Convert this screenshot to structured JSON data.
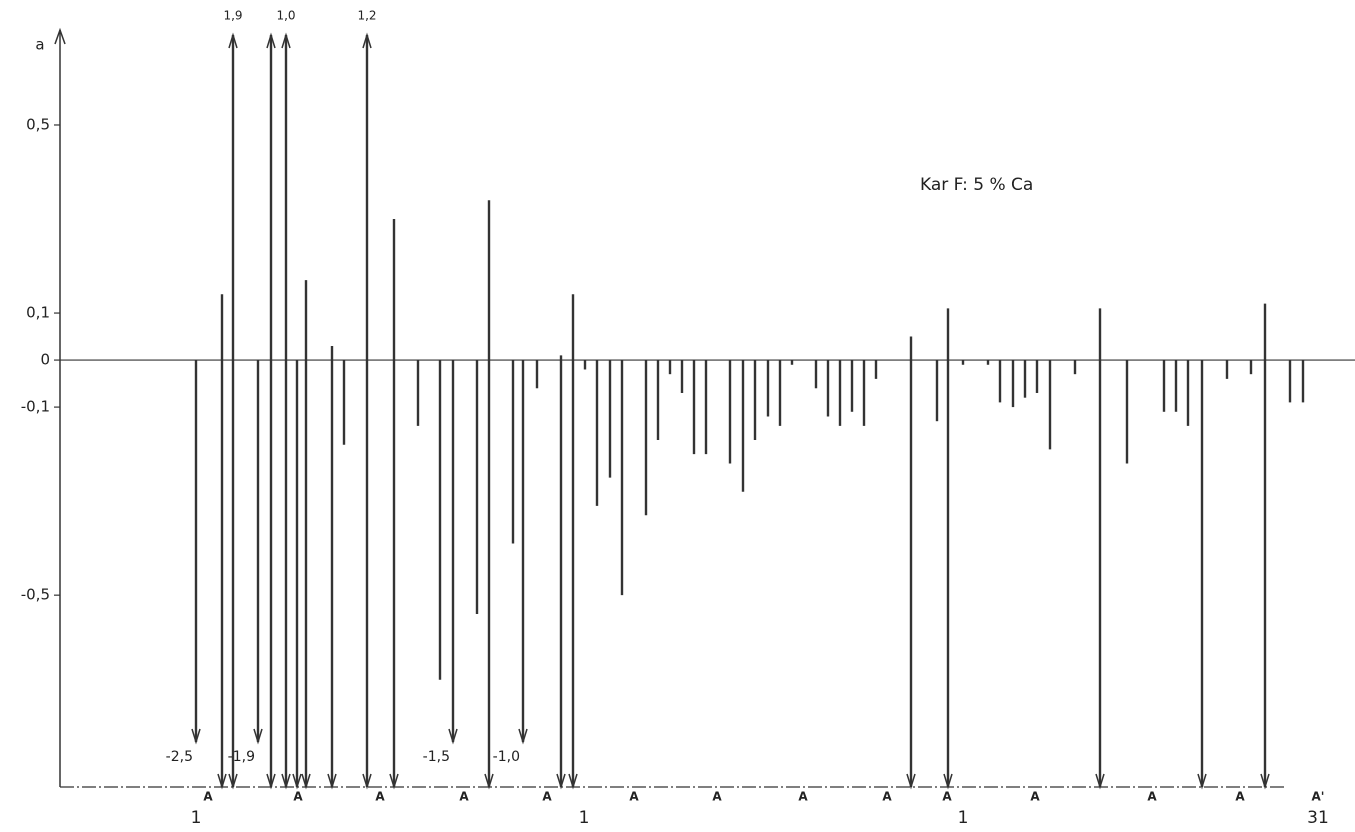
{
  "chart_data": {
    "type": "stem",
    "y_label": "a",
    "annotation": "Kar F:  5 % Ca",
    "color": "#333333",
    "ylim": [
      -0.908,
      0.702
    ],
    "xlim": [
      6,
      135.5
    ],
    "yticks": [
      {
        "value": 0.5,
        "label": "0,5"
      },
      {
        "value": 0.1,
        "label": "0,1"
      },
      0,
      {
        "value": -0.1,
        "label": "-0,1"
      },
      {
        "value": -0.5,
        "label": "-0,5"
      }
    ],
    "x": [
      19.6,
      22.2,
      23.3,
      25.8,
      27.1,
      28.6,
      29.7,
      30.6,
      33.2,
      34.4,
      36.7,
      39.4,
      41.8,
      44.0,
      45.3,
      47.7,
      48.9,
      51.3,
      52.3,
      53.7,
      56.1,
      57.3,
      58.5,
      59.7,
      61.0,
      62.2,
      64.6,
      65.8,
      67.0,
      68.2,
      69.4,
      70.6,
      73.0,
      74.3,
      75.5,
      76.8,
      78.0,
      79.2,
      81.6,
      82.8,
      84.0,
      85.2,
      86.4,
      87.6,
      91.1,
      93.7,
      94.8,
      96.3,
      98.8,
      100.0,
      101.3,
      102.5,
      103.7,
      105.0,
      107.5,
      110.0,
      112.7,
      116.4,
      117.6,
      118.8,
      120.2,
      122.7,
      125.1,
      126.5,
      129.0,
      130.3
    ],
    "values": [
      -2.5,
      0.14,
      1.9,
      -1.9,
      1.0,
      1.0,
      0,
      0.17,
      0.03,
      -0.18,
      1.2,
      0.3,
      -0.14,
      -0.68,
      -1.5,
      -0.54,
      0.34,
      -0.39,
      -1.0,
      -0.06,
      0.01,
      0.14,
      -0.02,
      -0.31,
      -0.25,
      -0.5,
      -0.33,
      -0.17,
      -0.03,
      -0.07,
      -0.2,
      -0.2,
      -0.22,
      -0.28,
      -0.17,
      -0.12,
      -0.14,
      -0.01,
      -0.06,
      -0.12,
      -0.14,
      -0.11,
      -0.14,
      -0.04,
      0.05,
      -0.13,
      0.11,
      -0.01,
      -0.01,
      -0.09,
      -0.1,
      -0.08,
      -0.07,
      -0.19,
      -0.03,
      0.11,
      -0.22,
      -0.11,
      -0.11,
      -0.14,
      0,
      -0.04,
      -0.03,
      0.12,
      -0.09,
      -0.09
    ],
    "value_labels": [
      "-2,5",
      null,
      "1,9",
      "-1,9",
      null,
      "1,0",
      null,
      null,
      null,
      null,
      "1,2",
      null,
      null,
      null,
      "-1,5",
      null,
      null,
      null,
      "-1,0",
      null,
      null,
      null,
      null,
      null,
      null,
      null,
      null,
      null,
      null,
      null,
      null,
      null,
      null,
      null,
      null,
      null,
      null,
      null,
      null,
      null,
      null,
      null,
      null,
      null,
      null,
      null,
      null,
      null,
      null,
      null,
      null,
      null,
      null,
      null,
      null,
      null,
      null,
      null,
      null,
      null,
      null,
      null,
      null,
      null,
      null,
      null
    ],
    "to_axis": [
      false,
      true,
      true,
      false,
      true,
      true,
      true,
      true,
      true,
      false,
      true,
      true,
      false,
      false,
      false,
      false,
      true,
      false,
      false,
      false,
      true,
      true,
      false,
      false,
      false,
      false,
      false,
      false,
      false,
      false,
      false,
      false,
      false,
      false,
      false,
      false,
      false,
      false,
      false,
      false,
      false,
      false,
      false,
      false,
      true,
      false,
      true,
      false,
      false,
      false,
      false,
      false,
      false,
      false,
      false,
      true,
      false,
      false,
      false,
      false,
      true,
      false,
      false,
      true,
      false,
      false
    ],
    "x_labels": [
      {
        "x": 19.6,
        "label": "1"
      },
      {
        "x": 58.4,
        "label": "1"
      },
      {
        "x": 96.3,
        "label": "1"
      },
      {
        "x": 131.8,
        "label": "31"
      }
    ],
    "markers": [
      {
        "x": 20.8,
        "label": "A"
      },
      {
        "x": 29.8,
        "label": "A"
      },
      {
        "x": 38.0,
        "label": "A"
      },
      {
        "x": 46.4,
        "label": "A"
      },
      {
        "x": 54.7,
        "label": "A"
      },
      {
        "x": 63.4,
        "label": "A"
      },
      {
        "x": 71.7,
        "label": "A"
      },
      {
        "x": 80.3,
        "label": "A"
      },
      {
        "x": 88.7,
        "label": "A"
      },
      {
        "x": 94.7,
        "label": "A"
      },
      {
        "x": 103.5,
        "label": "A"
      },
      {
        "x": 115.2,
        "label": "A"
      },
      {
        "x": 124.0,
        "label": "A"
      },
      {
        "x": 131.8,
        "label": "A'"
      }
    ]
  }
}
